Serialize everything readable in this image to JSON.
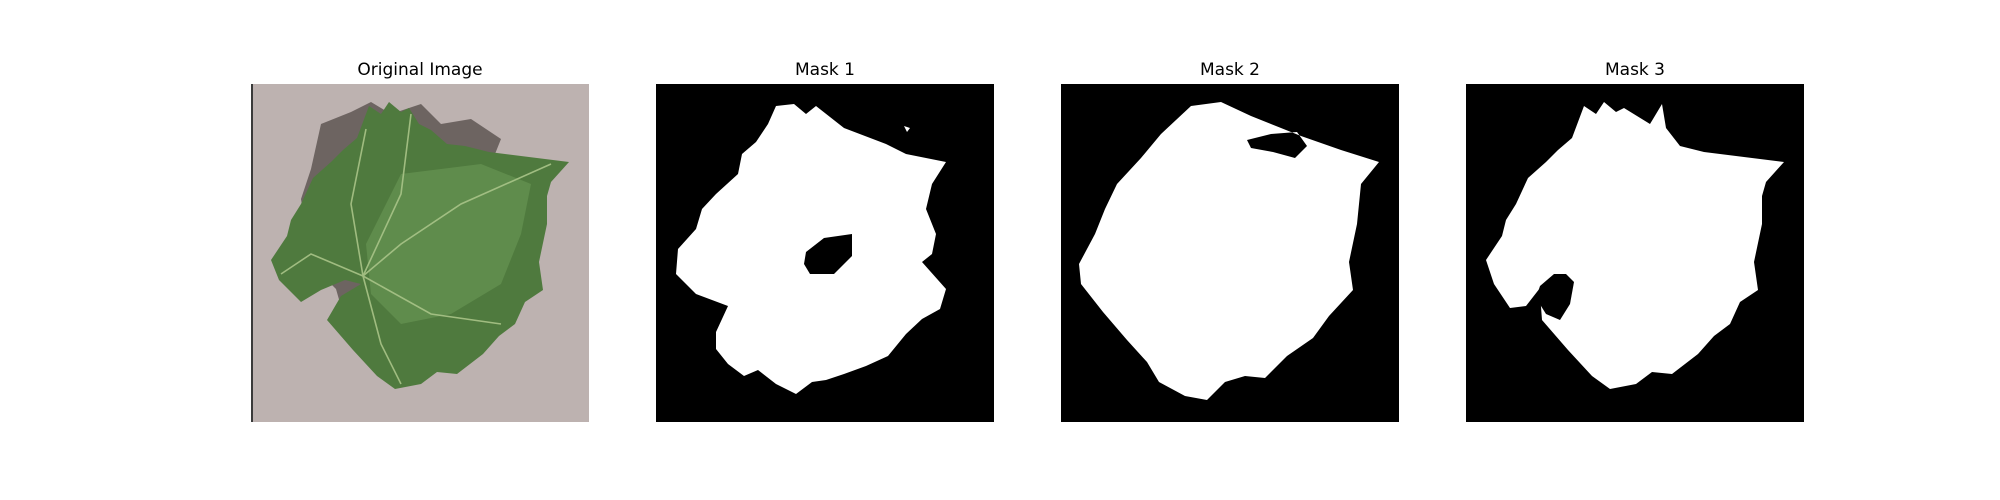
{
  "panels": [
    {
      "title": "Original Image",
      "kind": "photo",
      "subject": "grape-leaf-photo"
    },
    {
      "title": "Mask 1",
      "kind": "mask",
      "subject": "leaf-mask"
    },
    {
      "title": "Mask 2",
      "kind": "mask",
      "subject": "leaf-mask"
    },
    {
      "title": "Mask 3",
      "kind": "mask",
      "subject": "leaf-mask"
    }
  ],
  "colors": {
    "background": "#ffffff",
    "mask_background": "#000000",
    "mask_foreground": "#ffffff",
    "photo_ground": "#bdb2b0",
    "leaf_fill": "#4f7a3e",
    "leaf_vein": "#a9c488",
    "leaf_shadow": "#5f5654"
  }
}
